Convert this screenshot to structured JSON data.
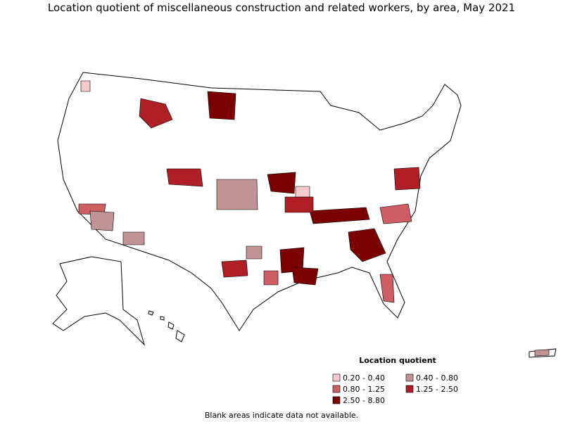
{
  "title": "Location quotient of miscellaneous construction and related workers, by area, May 2021",
  "legend": {
    "title": "Location quotient",
    "items": [
      {
        "label": "0.20 - 0.40",
        "color": "#f6c9ce"
      },
      {
        "label": "0.40 - 0.80",
        "color": "#c09494"
      },
      {
        "label": "0.80 - 1.25",
        "color": "#cf5d64"
      },
      {
        "label": "1.25 - 2.50",
        "color": "#b01e26"
      },
      {
        "label": "2.50 - 8.80",
        "color": "#7c0000"
      }
    ]
  },
  "note": "Blank areas indicate data not available."
}
